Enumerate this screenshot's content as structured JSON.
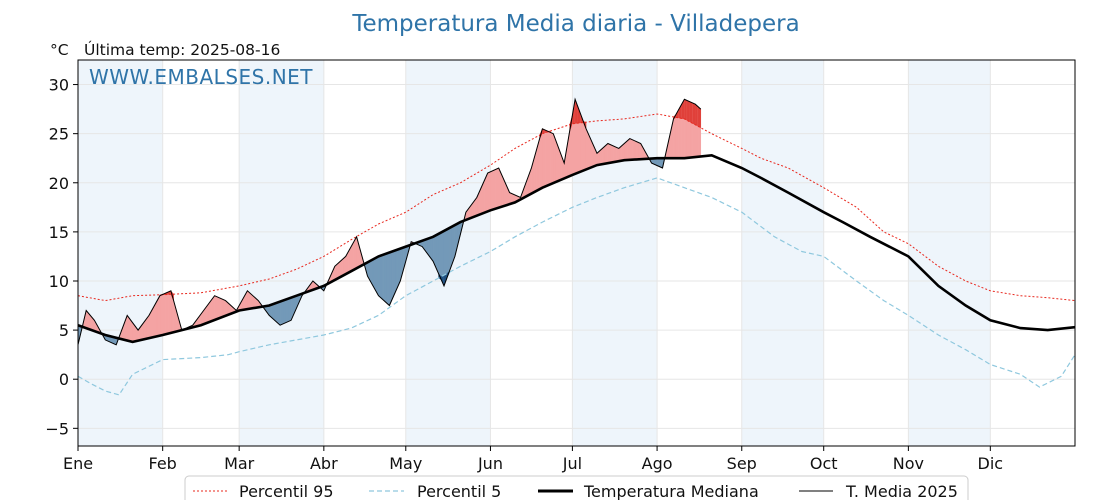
{
  "chart_data": {
    "type": "line",
    "title": "Temperatura Media diaria - Villadepera",
    "unit_label": "°C",
    "last_reading": "Última temp: 2025-08-16",
    "watermark": "WWW.EMBALSES.NET",
    "xlabel": "",
    "ylabel": "",
    "ylim": [
      -6.8,
      32.5
    ],
    "xlim": [
      0,
      365
    ],
    "y_ticks": [
      -5,
      0,
      5,
      10,
      15,
      20,
      25,
      30
    ],
    "x_ticks": [
      {
        "label": "Ene",
        "day": 0
      },
      {
        "label": "Feb",
        "day": 31
      },
      {
        "label": "Mar",
        "day": 59
      },
      {
        "label": "Abr",
        "day": 90
      },
      {
        "label": "May",
        "day": 120
      },
      {
        "label": "Jun",
        "day": 151
      },
      {
        "label": "Jul",
        "day": 181
      },
      {
        "label": "Ago",
        "day": 212
      },
      {
        "label": "Sep",
        "day": 243
      },
      {
        "label": "Oct",
        "day": 273
      },
      {
        "label": "Nov",
        "day": 304
      },
      {
        "label": "Dic",
        "day": 334
      }
    ],
    "shaded_months": [
      [
        0,
        31
      ],
      [
        59,
        90
      ],
      [
        120,
        151
      ],
      [
        181,
        212
      ],
      [
        243,
        273
      ],
      [
        304,
        334
      ]
    ],
    "grid": true,
    "legend_position": "bottom",
    "colors": {
      "p95": "#e8281e",
      "p5": "#8fc8de",
      "median": "#000000",
      "t2025": "#000000",
      "above_fill": "#f4a3a3",
      "above_fill_p95": "#e0403a",
      "below_fill": "#7399b8",
      "below_fill_p5": "#1f4f80",
      "band_shade": "#eef5fb"
    },
    "series": [
      {
        "name": "Percentil 95",
        "style": "dotted",
        "points": [
          [
            0,
            8.5
          ],
          [
            10,
            8.0
          ],
          [
            20,
            8.5
          ],
          [
            31,
            8.6
          ],
          [
            45,
            8.8
          ],
          [
            59,
            9.5
          ],
          [
            70,
            10.2
          ],
          [
            80,
            11.2
          ],
          [
            90,
            12.5
          ],
          [
            100,
            14.2
          ],
          [
            110,
            15.8
          ],
          [
            120,
            17.0
          ],
          [
            130,
            18.8
          ],
          [
            140,
            20.0
          ],
          [
            151,
            21.8
          ],
          [
            160,
            23.5
          ],
          [
            170,
            25.0
          ],
          [
            181,
            26.0
          ],
          [
            190,
            26.3
          ],
          [
            200,
            26.5
          ],
          [
            212,
            27.0
          ],
          [
            222,
            26.5
          ],
          [
            232,
            25.0
          ],
          [
            243,
            23.5
          ],
          [
            250,
            22.5
          ],
          [
            260,
            21.5
          ],
          [
            273,
            19.5
          ],
          [
            285,
            17.5
          ],
          [
            295,
            15.0
          ],
          [
            304,
            13.8
          ],
          [
            315,
            11.5
          ],
          [
            325,
            10.0
          ],
          [
            334,
            9.0
          ],
          [
            345,
            8.5
          ],
          [
            355,
            8.3
          ],
          [
            365,
            8.0
          ]
        ]
      },
      {
        "name": "Percentil 5",
        "style": "dashed",
        "points": [
          [
            0,
            0.3
          ],
          [
            5,
            -0.5
          ],
          [
            10,
            -1.2
          ],
          [
            15,
            -1.6
          ],
          [
            20,
            0.5
          ],
          [
            31,
            2.0
          ],
          [
            45,
            2.2
          ],
          [
            55,
            2.5
          ],
          [
            59,
            2.8
          ],
          [
            70,
            3.5
          ],
          [
            80,
            4.0
          ],
          [
            90,
            4.5
          ],
          [
            100,
            5.2
          ],
          [
            110,
            6.5
          ],
          [
            120,
            8.5
          ],
          [
            130,
            10.0
          ],
          [
            140,
            11.5
          ],
          [
            151,
            13.0
          ],
          [
            160,
            14.5
          ],
          [
            170,
            16.0
          ],
          [
            181,
            17.5
          ],
          [
            190,
            18.5
          ],
          [
            200,
            19.5
          ],
          [
            212,
            20.5
          ],
          [
            222,
            19.5
          ],
          [
            232,
            18.5
          ],
          [
            243,
            17.0
          ],
          [
            255,
            14.5
          ],
          [
            265,
            13.0
          ],
          [
            273,
            12.5
          ],
          [
            285,
            10.0
          ],
          [
            295,
            8.0
          ],
          [
            304,
            6.5
          ],
          [
            315,
            4.5
          ],
          [
            325,
            3.0
          ],
          [
            334,
            1.5
          ],
          [
            345,
            0.5
          ],
          [
            352,
            -0.8
          ],
          [
            360,
            0.3
          ],
          [
            365,
            2.5
          ]
        ]
      },
      {
        "name": "Temperatura Mediana",
        "style": "solid-thick",
        "points": [
          [
            0,
            5.5
          ],
          [
            10,
            4.5
          ],
          [
            20,
            3.8
          ],
          [
            31,
            4.5
          ],
          [
            45,
            5.5
          ],
          [
            59,
            7.0
          ],
          [
            70,
            7.5
          ],
          [
            80,
            8.5
          ],
          [
            90,
            9.5
          ],
          [
            100,
            11.0
          ],
          [
            110,
            12.5
          ],
          [
            120,
            13.5
          ],
          [
            130,
            14.5
          ],
          [
            140,
            16.0
          ],
          [
            151,
            17.2
          ],
          [
            160,
            18.0
          ],
          [
            170,
            19.5
          ],
          [
            181,
            20.8
          ],
          [
            190,
            21.8
          ],
          [
            200,
            22.3
          ],
          [
            212,
            22.5
          ],
          [
            222,
            22.5
          ],
          [
            232,
            22.8
          ],
          [
            243,
            21.5
          ],
          [
            250,
            20.5
          ],
          [
            260,
            19.0
          ],
          [
            273,
            17.0
          ],
          [
            280,
            16.0
          ],
          [
            290,
            14.5
          ],
          [
            304,
            12.5
          ],
          [
            315,
            9.5
          ],
          [
            325,
            7.5
          ],
          [
            334,
            6.0
          ],
          [
            345,
            5.2
          ],
          [
            355,
            5.0
          ],
          [
            365,
            5.3
          ]
        ]
      },
      {
        "name": "T. Media 2025",
        "style": "solid-thin",
        "points": [
          [
            0,
            3.5
          ],
          [
            3,
            7.0
          ],
          [
            6,
            6.0
          ],
          [
            10,
            4.0
          ],
          [
            14,
            3.5
          ],
          [
            18,
            6.5
          ],
          [
            22,
            5.0
          ],
          [
            26,
            6.5
          ],
          [
            30,
            8.5
          ],
          [
            34,
            9.0
          ],
          [
            38,
            5.0
          ],
          [
            42,
            5.5
          ],
          [
            46,
            7.0
          ],
          [
            50,
            8.5
          ],
          [
            54,
            8.0
          ],
          [
            58,
            7.0
          ],
          [
            62,
            9.0
          ],
          [
            66,
            8.0
          ],
          [
            70,
            6.5
          ],
          [
            74,
            5.5
          ],
          [
            78,
            6.0
          ],
          [
            82,
            8.5
          ],
          [
            86,
            10.0
          ],
          [
            90,
            9.0
          ],
          [
            94,
            11.5
          ],
          [
            98,
            12.5
          ],
          [
            102,
            14.5
          ],
          [
            106,
            10.5
          ],
          [
            110,
            8.5
          ],
          [
            114,
            7.5
          ],
          [
            118,
            10.0
          ],
          [
            122,
            14.0
          ],
          [
            126,
            13.5
          ],
          [
            130,
            12.0
          ],
          [
            134,
            9.5
          ],
          [
            138,
            12.5
          ],
          [
            142,
            17.0
          ],
          [
            146,
            18.5
          ],
          [
            150,
            21.0
          ],
          [
            154,
            21.5
          ],
          [
            158,
            19.0
          ],
          [
            162,
            18.5
          ],
          [
            166,
            21.5
          ],
          [
            170,
            25.5
          ],
          [
            174,
            25.0
          ],
          [
            178,
            22.0
          ],
          [
            182,
            28.5
          ],
          [
            186,
            25.5
          ],
          [
            190,
            23.0
          ],
          [
            194,
            24.0
          ],
          [
            198,
            23.5
          ],
          [
            202,
            24.5
          ],
          [
            206,
            24.0
          ],
          [
            210,
            22.0
          ],
          [
            214,
            21.5
          ],
          [
            218,
            26.5
          ],
          [
            222,
            28.5
          ],
          [
            226,
            28.0
          ],
          [
            228,
            27.5
          ]
        ]
      }
    ]
  }
}
